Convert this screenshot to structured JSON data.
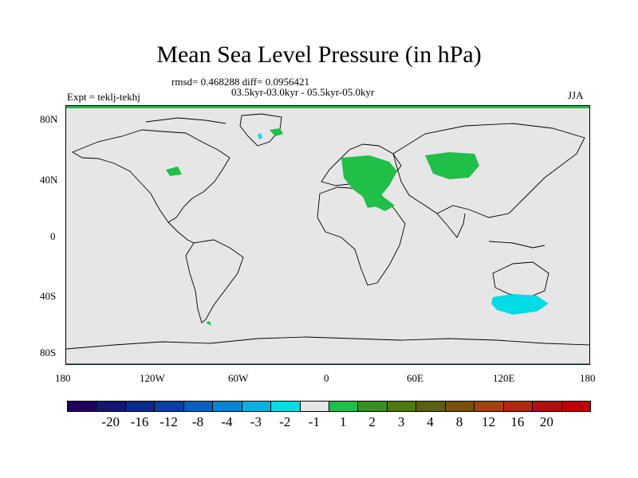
{
  "title": "Mean Sea Level Pressure (in hPa)",
  "stats_line": "rmsd= 0.468288 diff= 0.0956421",
  "period_line": "03.5kyr-03.0kyr - 05.5kyr-05.0kyr",
  "experiment": "Expt = teklj-tekhj",
  "season": "JJA",
  "lat_ticks": [
    "80N",
    "40N",
    "0",
    "40S",
    "80S"
  ],
  "lon_ticks": [
    "180",
    "120W",
    "60W",
    "0",
    "60E",
    "120E",
    "180"
  ],
  "colorbar": {
    "colors": [
      "#1f005f",
      "#14176f",
      "#0b2b8a",
      "#0a3fa3",
      "#0a5fbd",
      "#0a86cf",
      "#0bb0e0",
      "#00dde7",
      "#e6e6e6",
      "#1fbf48",
      "#3a8f23",
      "#4e7a10",
      "#5a6010",
      "#7a5008",
      "#a2430a",
      "#b0280e",
      "#b00f0f",
      "#c00000"
    ],
    "labels": [
      "-20",
      "-16",
      "-12",
      "-8",
      "-4",
      "-3",
      "-2",
      "-1",
      "1",
      "2",
      "3",
      "4",
      "8",
      "12",
      "16",
      "20"
    ]
  },
  "colors": {
    "positive_green": "#1fbf48",
    "negative_cyan": "#00dde7",
    "land_bg": "#e6e6e6",
    "frame_green": "#1fbf48"
  }
}
